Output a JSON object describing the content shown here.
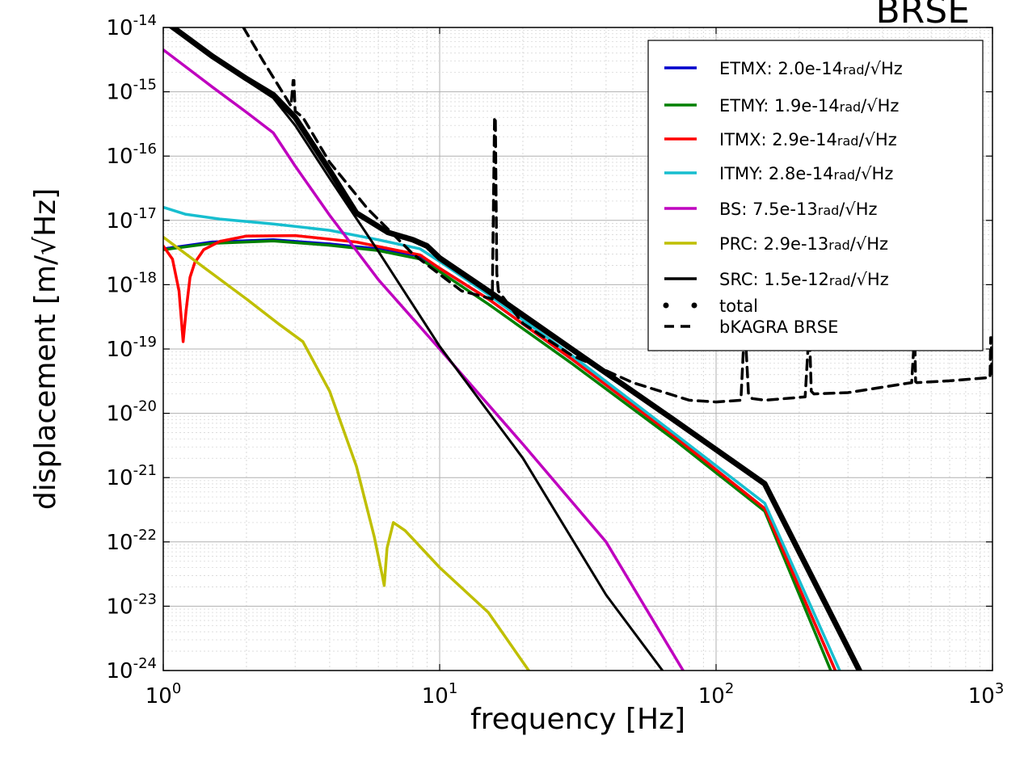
{
  "chart_data": {
    "type": "line",
    "title": "BRSE",
    "xlabel": "frequency [Hz]",
    "ylabel": "displacement [m/√Hz]",
    "x_scale": "log",
    "y_scale": "log",
    "xlim": [
      1,
      1000
    ],
    "ylim": [
      1e-24,
      1e-14
    ],
    "grid": true,
    "legend_position": "top-right",
    "x_ticks": [
      {
        "value": 1,
        "base": "10",
        "exp": "0"
      },
      {
        "value": 10,
        "base": "10",
        "exp": "1"
      },
      {
        "value": 100,
        "base": "10",
        "exp": "2"
      },
      {
        "value": 1000,
        "base": "10",
        "exp": "3"
      }
    ],
    "y_ticks": [
      {
        "value": 1e-14,
        "base": "10",
        "exp": "-14"
      },
      {
        "value": 1e-15,
        "base": "10",
        "exp": "-15"
      },
      {
        "value": 1e-16,
        "base": "10",
        "exp": "-16"
      },
      {
        "value": 1e-17,
        "base": "10",
        "exp": "-17"
      },
      {
        "value": 1e-18,
        "base": "10",
        "exp": "-18"
      },
      {
        "value": 1e-19,
        "base": "10",
        "exp": "-19"
      },
      {
        "value": 1e-20,
        "base": "10",
        "exp": "-20"
      },
      {
        "value": 1e-21,
        "base": "10",
        "exp": "-21"
      },
      {
        "value": 1e-22,
        "base": "10",
        "exp": "-22"
      },
      {
        "value": 1e-23,
        "base": "10",
        "exp": "-23"
      },
      {
        "value": 1e-24,
        "base": "10",
        "exp": "-24"
      }
    ],
    "series": [
      {
        "name": "ETMX",
        "label_value": "2.0e-14",
        "label_unit": "rad",
        "color": "#0000cc",
        "style": "solid",
        "x": [
          1,
          1.5,
          2.5,
          4,
          6,
          8.5,
          10,
          15,
          30,
          70,
          150,
          270
        ],
        "y": [
          3.6e-18,
          4.6e-18,
          5e-18,
          4.3e-18,
          3.6e-18,
          2.8e-18,
          1.8e-18,
          6e-19,
          7e-20,
          4.5e-21,
          3.3e-22,
          1e-24
        ]
      },
      {
        "name": "ETMY",
        "label_value": "1.9e-14",
        "label_unit": "rad",
        "color": "#008000",
        "style": "solid",
        "x": [
          1,
          1.5,
          2.5,
          4,
          6,
          8.5,
          10,
          15,
          30,
          70,
          150,
          260
        ],
        "y": [
          3.5e-18,
          4.4e-18,
          4.8e-18,
          4.1e-18,
          3.4e-18,
          2.5e-18,
          1.6e-18,
          5e-19,
          6e-20,
          4e-21,
          3e-22,
          1e-24
        ]
      },
      {
        "name": "ITMX",
        "label_value": "2.9e-14",
        "label_unit": "rad",
        "color": "#ff0000",
        "style": "solid",
        "x": [
          1,
          1.08,
          1.14,
          1.18,
          1.21,
          1.25,
          1.3,
          1.4,
          1.6,
          2,
          3,
          5,
          8.5,
          10,
          15,
          30,
          70,
          150,
          270
        ],
        "y": [
          4e-18,
          2.5e-18,
          8e-19,
          1.3e-19,
          4e-19,
          1.3e-18,
          2.2e-18,
          3.5e-18,
          4.7e-18,
          5.7e-18,
          5.8e-18,
          4.6e-18,
          2.9e-18,
          1.8e-18,
          6e-19,
          7e-20,
          4.5e-21,
          3.3e-22,
          1e-24
        ]
      },
      {
        "name": "ITMY",
        "label_value": "2.8e-14",
        "label_unit": "rad",
        "color": "#17becf",
        "style": "solid",
        "x": [
          1,
          1.2,
          1.6,
          2.5,
          4,
          6,
          8.5,
          10,
          15,
          30,
          70,
          150,
          280
        ],
        "y": [
          1.6e-17,
          1.25e-17,
          1.05e-17,
          8.8e-18,
          7e-18,
          5e-18,
          3.6e-18,
          2.3e-18,
          7e-19,
          8e-20,
          5e-21,
          4e-22,
          1e-24
        ]
      },
      {
        "name": "BS",
        "label_value": "7.5e-13",
        "label_unit": "rad",
        "color": "#bf00bf",
        "style": "solid",
        "x": [
          1,
          1.5,
          2,
          2.5,
          3,
          4,
          6,
          10,
          20,
          40,
          76
        ],
        "y": [
          4.5e-15,
          1.2e-15,
          4.8e-16,
          2.3e-16,
          7e-17,
          1.2e-17,
          1.2e-18,
          1e-19,
          3.3e-21,
          1e-22,
          1e-24
        ]
      },
      {
        "name": "PRC",
        "label_value": "2.9e-13",
        "label_unit": "rad",
        "color": "#bfbf00",
        "style": "solid",
        "x": [
          1,
          1.5,
          2,
          2.6,
          3.2,
          4,
          5,
          5.8,
          6.2,
          6.3,
          6.45,
          6.8,
          7.5,
          10,
          15,
          21
        ],
        "y": [
          5.5e-18,
          1.5e-18,
          6e-19,
          2.5e-19,
          1.3e-19,
          2.2e-20,
          1.5e-21,
          1.2e-22,
          3e-23,
          2.1e-23,
          8e-23,
          2e-22,
          1.5e-22,
          4e-23,
          8e-24,
          1e-24
        ]
      },
      {
        "name": "SRC",
        "label_value": "1.5e-12",
        "label_unit": "rad",
        "color": "#000000",
        "style": "solid",
        "x": [
          1,
          1.5,
          2,
          2.5,
          3,
          4,
          6,
          10,
          20,
          40,
          64
        ],
        "y": [
          1.2e-14,
          3.5e-15,
          1.5e-15,
          8e-16,
          3e-16,
          4.5e-17,
          3.3e-18,
          1.1e-19,
          2e-21,
          1.5e-23,
          1e-24
        ]
      },
      {
        "name": "total",
        "label_value": "",
        "label_unit": "",
        "color": "#000000",
        "style": "dotted",
        "x": [
          1,
          1.5,
          2,
          2.5,
          3,
          4,
          5,
          6.5,
          8,
          9,
          10,
          15,
          30,
          70,
          150,
          330
        ],
        "y": [
          1.3e-14,
          3.6e-15,
          1.6e-15,
          9e-16,
          4e-16,
          6e-17,
          1.3e-17,
          6.5e-18,
          5e-18,
          4e-18,
          2.6e-18,
          8e-19,
          1e-19,
          8e-21,
          8e-22,
          1e-24
        ]
      },
      {
        "name": "bKAGRA BRSE",
        "label_value": "",
        "label_unit": "",
        "color": "#000000",
        "style": "dashed",
        "x": [
          1.95,
          2.3,
          2.9,
          2.95,
          2.97,
          3.0,
          3.2,
          4,
          5.5,
          8,
          12,
          15.5,
          15.8,
          15.9,
          16.1,
          16.3,
          20,
          30,
          50,
          80,
          100,
          123,
          126,
          128,
          131,
          135,
          150,
          210,
          216,
          218,
          221,
          226,
          300,
          510,
          520,
          524,
          527,
          532,
          700,
          980,
          985,
          990,
          995,
          1000
        ],
        "y": [
          1e-14,
          3e-15,
          6e-16,
          1.5e-15,
          1.5e-15,
          5e-16,
          4e-16,
          8e-17,
          1.5e-17,
          3e-18,
          8e-19,
          6e-19,
          4e-16,
          4e-16,
          1.5e-18,
          8e-19,
          2.5e-19,
          8e-20,
          3e-20,
          1.6e-20,
          1.5e-20,
          1.6e-20,
          1.3e-19,
          1.3e-19,
          2e-20,
          1.7e-20,
          1.6e-20,
          1.8e-20,
          1.4e-19,
          1.4e-19,
          2.2e-20,
          2e-20,
          2.1e-20,
          3e-20,
          1.2e-19,
          1.2e-19,
          3.1e-20,
          3e-20,
          3.2e-20,
          3.6e-20,
          1.5e-19,
          1.5e-19,
          3.8e-20,
          3.8e-20
        ]
      }
    ]
  }
}
